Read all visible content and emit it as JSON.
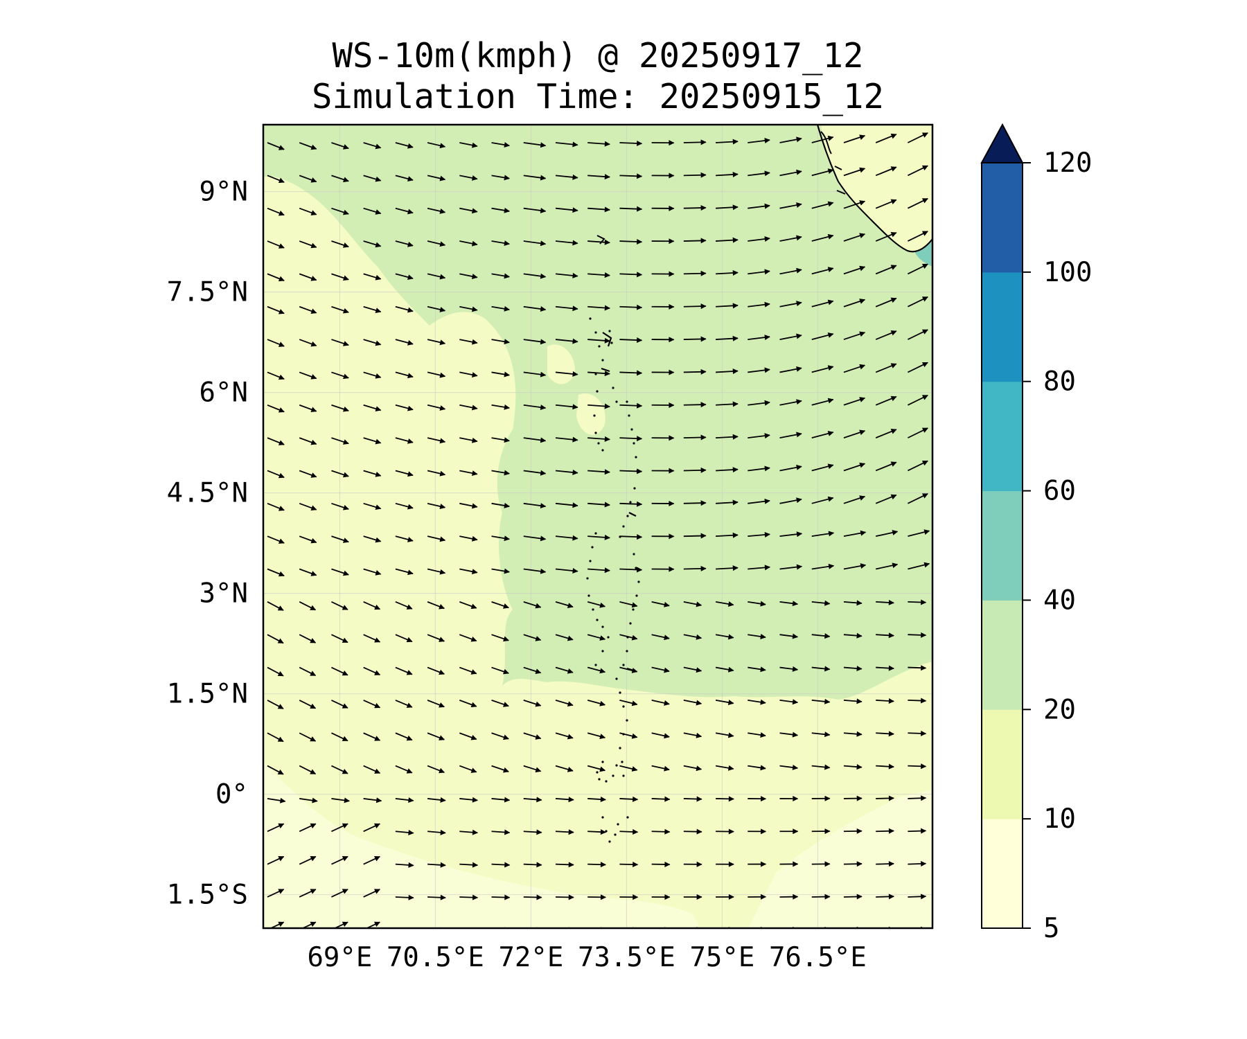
{
  "title": {
    "line1": "WS-10m(kmph) @ 20250917_12",
    "line2": "Simulation Time: 20250915_12"
  },
  "map": {
    "lon_range": [
      67.8,
      78.3
    ],
    "lat_range": [
      -2.0,
      10.0
    ],
    "lat_ticks": [
      {
        "value": 9,
        "label": "9°N"
      },
      {
        "value": 7.5,
        "label": "7.5°N"
      },
      {
        "value": 6,
        "label": "6°N"
      },
      {
        "value": 4.5,
        "label": "4.5°N"
      },
      {
        "value": 3,
        "label": "3°N"
      },
      {
        "value": 1.5,
        "label": "1.5°N"
      },
      {
        "value": 0,
        "label": "0°"
      },
      {
        "value": -1.5,
        "label": "1.5°S"
      }
    ],
    "lon_ticks": [
      {
        "value": 69,
        "label": "69°E"
      },
      {
        "value": 70.5,
        "label": "70.5°E"
      },
      {
        "value": 72,
        "label": "72°E"
      },
      {
        "value": 73.5,
        "label": "73.5°E"
      },
      {
        "value": 75,
        "label": "75°E"
      },
      {
        "value": 76.5,
        "label": "76.5°E"
      }
    ],
    "field": "10 m wind speed, mostly 10–20 kmph west of ~72°E and south of ~1.5°N, 20–40 kmph over the north-east; winds westerly to north-westerly, veering to west-south-west near the Indian coast"
  },
  "colorbar": {
    "ticks": [
      "5",
      "10",
      "20",
      "40",
      "60",
      "80",
      "100",
      "120"
    ],
    "levels": [
      5,
      10,
      20,
      40,
      60,
      80,
      100,
      120
    ],
    "colors": [
      "#ffffd9",
      "#edf8b1",
      "#c7e9b4",
      "#7fcdbb",
      "#41b6c4",
      "#1d91c0",
      "#225ea8",
      "#0c2c84"
    ],
    "extend_color": "#081d58"
  },
  "colors": {
    "low": "#f4fbc4",
    "mid": "#d3eeb4",
    "high": "#7fcdbb",
    "palest": "#ffffd9"
  }
}
